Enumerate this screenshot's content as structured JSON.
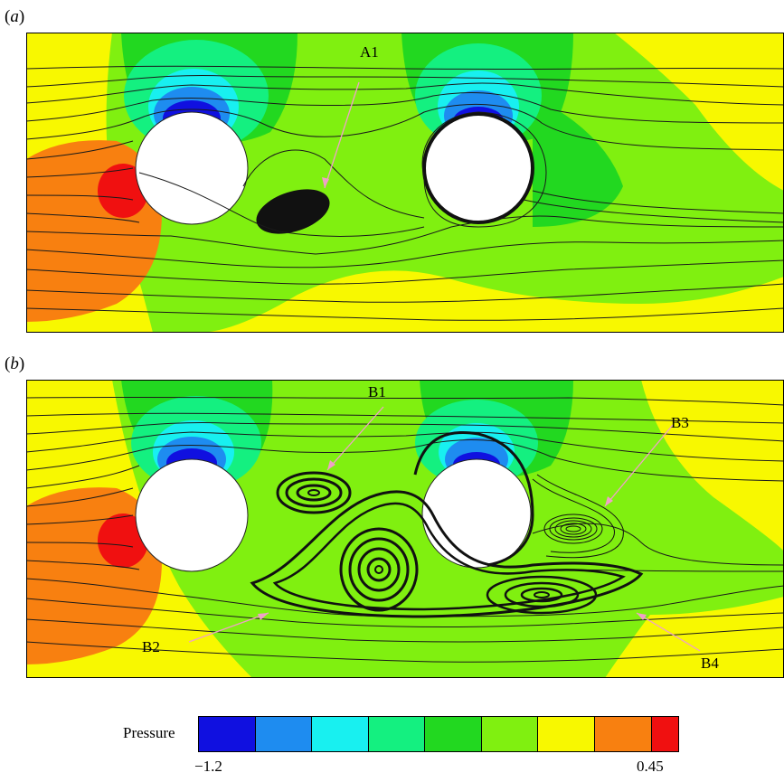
{
  "panels": [
    {
      "label_open": "(",
      "label_letter": "a",
      "label_close": ")",
      "annotations": [
        "A1"
      ]
    },
    {
      "label_open": "(",
      "label_letter": "b",
      "label_close": ")",
      "annotations": [
        "B1",
        "B2",
        "B3",
        "B4"
      ]
    }
  ],
  "colorbar": {
    "title": "Pressure",
    "min_label": "−1.2",
    "max_label": "0.45",
    "colors": [
      "#1010e0",
      "#1e8cf0",
      "#18f0f0",
      "#14f080",
      "#22d820",
      "#80f010",
      "#f8f800",
      "#f88010",
      "#f01010"
    ]
  },
  "field_colors": {
    "background": "#f8f800",
    "green_light": "#80f010",
    "green_mid": "#22d820",
    "green_teal": "#14f080",
    "cyan": "#18f0f0",
    "blue_light": "#1e8cf0",
    "blue_dark": "#1010e0",
    "orange": "#f88010",
    "red": "#f01010",
    "streamline": "#1a1a1a",
    "arrow": "#f0a0c8"
  }
}
